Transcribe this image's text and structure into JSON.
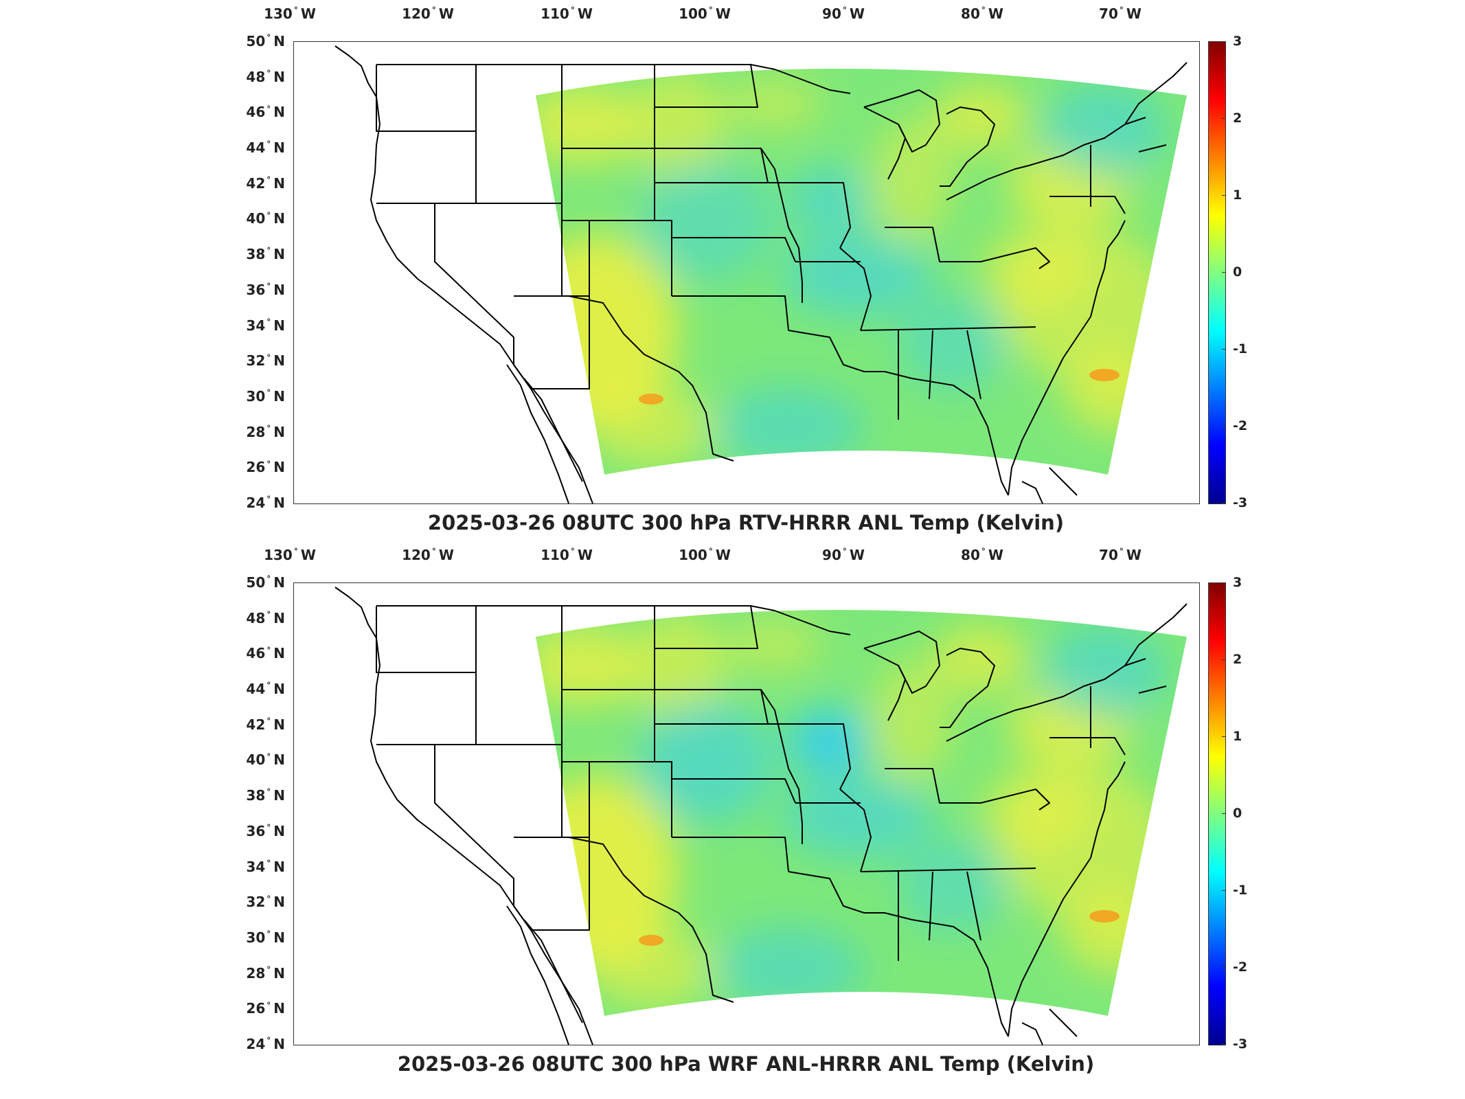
{
  "panels": [
    {
      "title": "2025-03-26 08UTC 300 hPa RTV-HRRR ANL Temp (Kelvin)",
      "variant": "rtv"
    },
    {
      "title": "2025-03-26 08UTC 300 hPa WRF ANL-HRRR ANL Temp (Kelvin)",
      "variant": "wrf"
    }
  ],
  "lon_labels": [
    {
      "deg": "130",
      "hemi": "W"
    },
    {
      "deg": "120",
      "hemi": "W"
    },
    {
      "deg": "110",
      "hemi": "W"
    },
    {
      "deg": "100",
      "hemi": "W"
    },
    {
      "deg": "90",
      "hemi": "W"
    },
    {
      "deg": "80",
      "hemi": "W"
    },
    {
      "deg": "70",
      "hemi": "W"
    }
  ],
  "lat_labels": [
    {
      "deg": "50",
      "hemi": "N"
    },
    {
      "deg": "48",
      "hemi": "N"
    },
    {
      "deg": "46",
      "hemi": "N"
    },
    {
      "deg": "44",
      "hemi": "N"
    },
    {
      "deg": "42",
      "hemi": "N"
    },
    {
      "deg": "40",
      "hemi": "N"
    },
    {
      "deg": "38",
      "hemi": "N"
    },
    {
      "deg": "36",
      "hemi": "N"
    },
    {
      "deg": "34",
      "hemi": "N"
    },
    {
      "deg": "32",
      "hemi": "N"
    },
    {
      "deg": "30",
      "hemi": "N"
    },
    {
      "deg": "28",
      "hemi": "N"
    },
    {
      "deg": "26",
      "hemi": "N"
    },
    {
      "deg": "24",
      "hemi": "N"
    }
  ],
  "colorbar": {
    "ticks": [
      "3",
      "2",
      "1",
      "0",
      "-1",
      "-2",
      "-3"
    ],
    "min": -3,
    "max": 3,
    "colormap": "jet"
  },
  "colors": {
    "field_base": "#7de87a",
    "warm_anomaly": "#f0f040",
    "cool_anomaly": "#3ad0e8",
    "borders": "#000000"
  }
}
